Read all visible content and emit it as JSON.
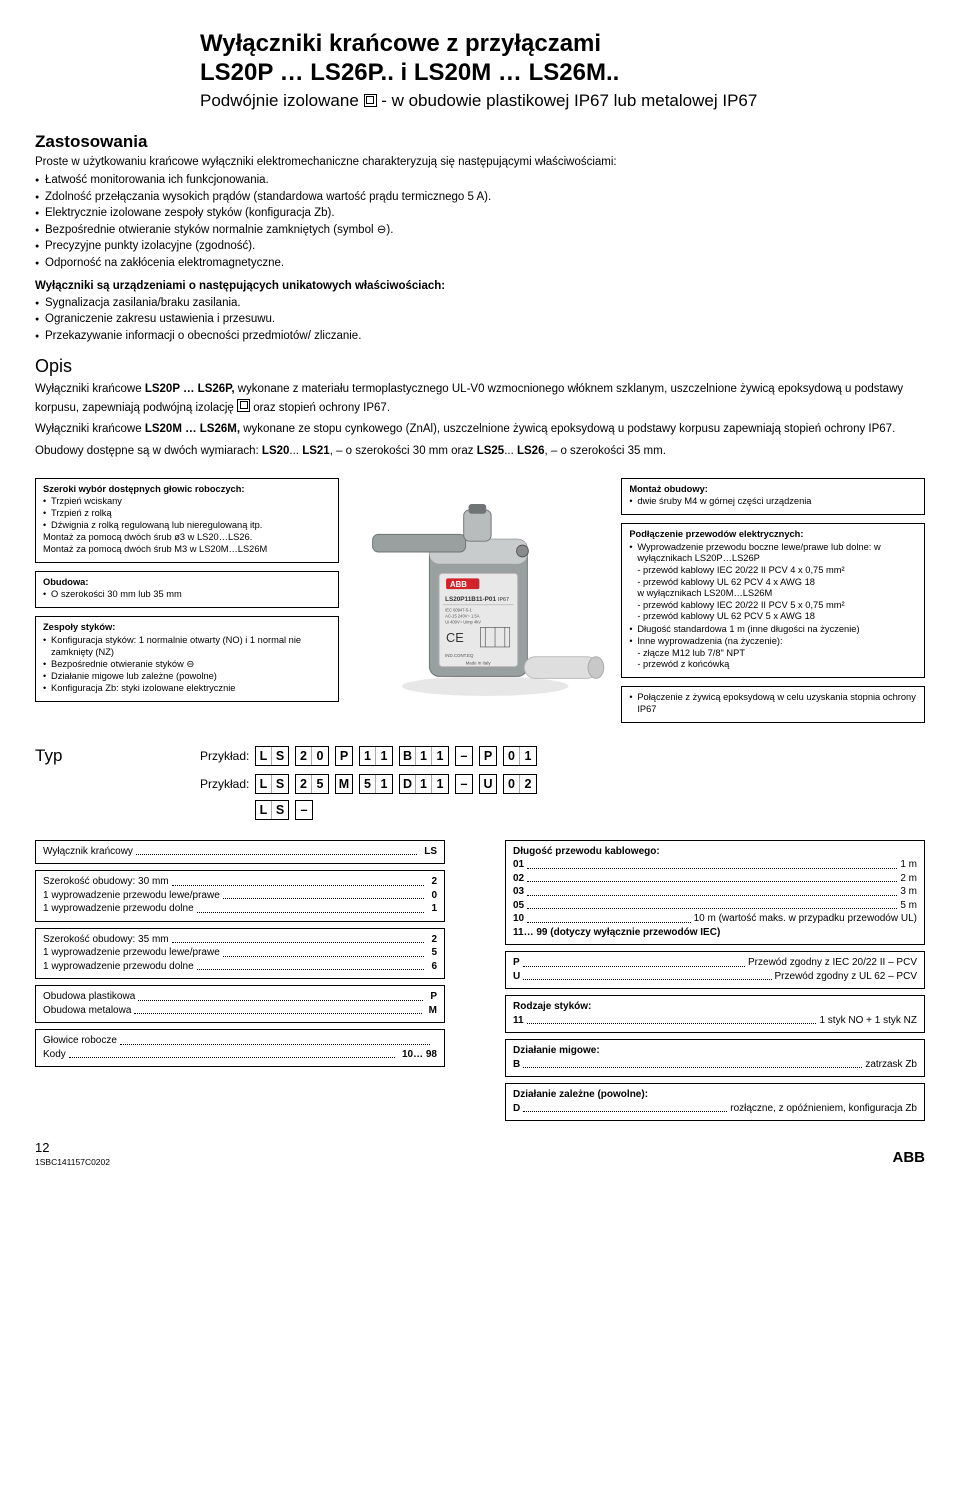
{
  "header": {
    "title1": "Wyłączniki krańcowe z przyłączami",
    "title2": "LS20P … LS26P.. i LS20M … LS26M..",
    "subtitle_prefix": "Podwójnie izolowane ",
    "subtitle_suffix": " - w obudowie plastikowej IP67 lub metalowej IP67"
  },
  "zastosowania": {
    "heading": "Zastosowania",
    "intro": "Proste w użytkowaniu krańcowe wyłączniki elektromechaniczne charakteryzują się następującymi właściwościami:",
    "bullets": [
      "Łatwość monitorowania ich funkcjonowania.",
      "Zdolność przełączania wysokich prądów (standardowa wartość prądu termicznego 5 A).",
      "Elektrycznie izolowane zespoły styków (konfiguracja Zb).",
      "Bezpośrednie otwieranie styków normalnie zamkniętych (symbol ⊖).",
      "Precyzyjne punkty izolacyjne (zgodność).",
      "Odporność na zakłócenia elektromagnetyczne."
    ],
    "sub_heading": "Wyłączniki są urządzeniami o następujących unikatowych właściwościach:",
    "bullets2": [
      "Sygnalizacja zasilania/braku zasilania.",
      "Ograniczenie zakresu ustawienia i przesuwu.",
      "Przekazywanie informacji o obecności przedmiotów/ zliczanie."
    ]
  },
  "opis": {
    "heading": "Opis",
    "p1_a": "Wyłączniki krańcowe ",
    "p1_b": "LS20P … LS26P,",
    "p1_c": " wykonane z materiału termoplastycznego UL-V0 wzmocnionego włóknem szklanym, uszczelnione żywicą epoksydową u podstawy korpusu, zapewniają podwójną izolację ",
    "p1_d": " oraz stopień ochrony IP67.",
    "p2_a": "Wyłączniki krańcowe ",
    "p2_b": "LS20M … LS26M,",
    "p2_c": " wykonane ze stopu cynkowego (ZnAl), uszczelnione żywicą epoksydową u podstawy korpusu zapewniają stopień ochrony IP67.",
    "p3_a": "Obudowy dostępne są w dwóch wymiarach: ",
    "p3_b": "LS20",
    "p3_c": "... ",
    "p3_d": "LS21",
    "p3_e": ", – o szerokości 30 mm oraz ",
    "p3_f": "LS25",
    "p3_g": "... ",
    "p3_h": "LS26",
    "p3_i": ", – o szerokości 35 mm."
  },
  "callouts": {
    "left": [
      {
        "title": "Szeroki wybór dostępnych głowic roboczych:",
        "items": [
          "Trzpień wciskany",
          "Trzpień z rolką",
          "Dźwignia z rolką regulowaną lub nieregulowaną itp."
        ],
        "tail": [
          "Montaż za pomocą dwóch śrub ø3 w LS20…LS26.",
          "Montaż za pomocą dwóch śrub M3 w LS20M…LS26M"
        ]
      },
      {
        "title": "Obudowa:",
        "items": [
          "O szerokości 30 mm lub 35 mm"
        ]
      },
      {
        "title": "Zespoły styków:",
        "items": [
          "Konfiguracja styków: 1 normalnie otwarty (NO) i 1 normal nie zamknięty (NZ)",
          "Bezpośrednie otwieranie styków ⊖",
          "Działanie migowe lub zależne (powolne)",
          "Konfiguracja Zb: styki izolowane elektrycznie"
        ]
      }
    ],
    "right": [
      {
        "title": "Montaż obudowy:",
        "items": [
          "dwie śruby M4 w górnej części urządzenia"
        ]
      },
      {
        "title": "Podłączenie przewodów elektrycznych:",
        "items_block": [
          "Wyprowadzenie przewodu boczne lewe/prawe lub dolne: w wyłącznikach LS20P…LS26P",
          "- przewód kablowy IEC 20/22 II PCV 4 x 0,75 mm²",
          "- przewód kablowy UL 62 PCV 4 x AWG 18",
          " w wyłącznikach LS20M…LS26M",
          "- przewód kablowy IEC 20/22 II PCV 5 x 0,75 mm²",
          "- przewód kablowy UL 62 PCV 5 x AWG 18"
        ],
        "items2": [
          "Długość standardowa  1 m (inne długości na życzenie)",
          "Inne wyprowadzenia (na życzenie):"
        ],
        "tail2": [
          "- złącze M12 lub 7/8\" NPT",
          "- przewód z końcówką"
        ]
      },
      {
        "title": "",
        "items": [
          "Połączenie z żywicą epoksydową w celu uzyskania stopnia ochrony IP67"
        ]
      }
    ]
  },
  "typ": {
    "label": "Typ",
    "row_label": "Przykład:",
    "rows": [
      [
        "L",
        "S",
        " ",
        "2",
        "0",
        " ",
        "P",
        " ",
        "1",
        "1",
        " ",
        "B",
        "1",
        "1",
        " ",
        "–",
        " ",
        "P",
        " ",
        "0",
        "1"
      ],
      [
        "L",
        "S",
        " ",
        "2",
        "5",
        " ",
        "M",
        " ",
        "5",
        "1",
        " ",
        "D",
        "1",
        "1",
        " ",
        "–",
        " ",
        "U",
        " ",
        "0",
        "2"
      ],
      [
        "L",
        "S",
        " ",
        " ",
        " ",
        " ",
        " ",
        " ",
        " ",
        " ",
        " ",
        " ",
        " ",
        " ",
        " ",
        "–",
        " ",
        " ",
        " ",
        " ",
        " "
      ]
    ]
  },
  "tree": {
    "left": [
      {
        "rows": [
          [
            "Wyłącznik krańcowy",
            "LS"
          ]
        ]
      },
      {
        "rows": [
          [
            "Szerokość obudowy: 30 mm",
            "2"
          ],
          [
            "1 wyprowadzenie przewodu lewe/prawe",
            "0"
          ],
          [
            "1 wyprowadzenie przewodu dolne",
            "1"
          ]
        ]
      },
      {
        "rows": [
          [
            "Szerokość obudowy: 35 mm",
            "2"
          ],
          [
            "1 wyprowadzenie przewodu lewe/prawe",
            "5"
          ],
          [
            "1 wyprowadzenie przewodu dolne",
            "6"
          ]
        ]
      },
      {
        "rows": [
          [
            "Obudowa plastikowa",
            "P"
          ],
          [
            "Obudowa metalowa",
            "M"
          ]
        ]
      },
      {
        "rows": [
          [
            "Głowice robocze",
            ""
          ],
          [
            "Kody",
            "10… 98"
          ]
        ]
      }
    ],
    "right": [
      {
        "rows": [
          [
            "Długość przewodu kablowego:",
            ""
          ],
          [
            "01",
            "1 m"
          ],
          [
            "02",
            "2 m"
          ],
          [
            "03",
            "3 m"
          ],
          [
            "05",
            "5 m"
          ],
          [
            "10",
            "10 m (wartość maks. w przypadku przewodów UL)"
          ],
          [
            "11… 99 (dotyczy wyłącznie przewodów IEC)",
            ""
          ]
        ],
        "keyvalue": true
      },
      {
        "rows": [
          [
            "P",
            "Przewód zgodny z IEC 20/22 II – PCV"
          ],
          [
            "U",
            "Przewód zgodny z UL 62 – PCV"
          ]
        ],
        "keyvalue": true
      },
      {
        "rows": [
          [
            "Rodzaje styków:",
            ""
          ],
          [
            "11",
            "1 styk NO + 1 styk NZ"
          ]
        ],
        "keyvalue": true
      },
      {
        "rows": [
          [
            "Działanie migowe:",
            ""
          ],
          [
            "B",
            "zatrzask Zb"
          ]
        ],
        "keyvalue": true
      },
      {
        "rows": [
          [
            "Działanie zależne (powolne):",
            ""
          ],
          [
            "D",
            "rozłączne, z opóźnieniem, konfiguracja Zb"
          ]
        ],
        "keyvalue": true
      }
    ]
  },
  "footer": {
    "page": "12",
    "code": "1SBC141157C0202",
    "brand": "ABB"
  },
  "colors": {
    "text": "#000000",
    "device_body": "#9aa0a0",
    "device_body_light": "#c8cccc",
    "device_label": "#e8e8e8",
    "device_red": "#d2222a",
    "device_cable": "#dedede"
  }
}
